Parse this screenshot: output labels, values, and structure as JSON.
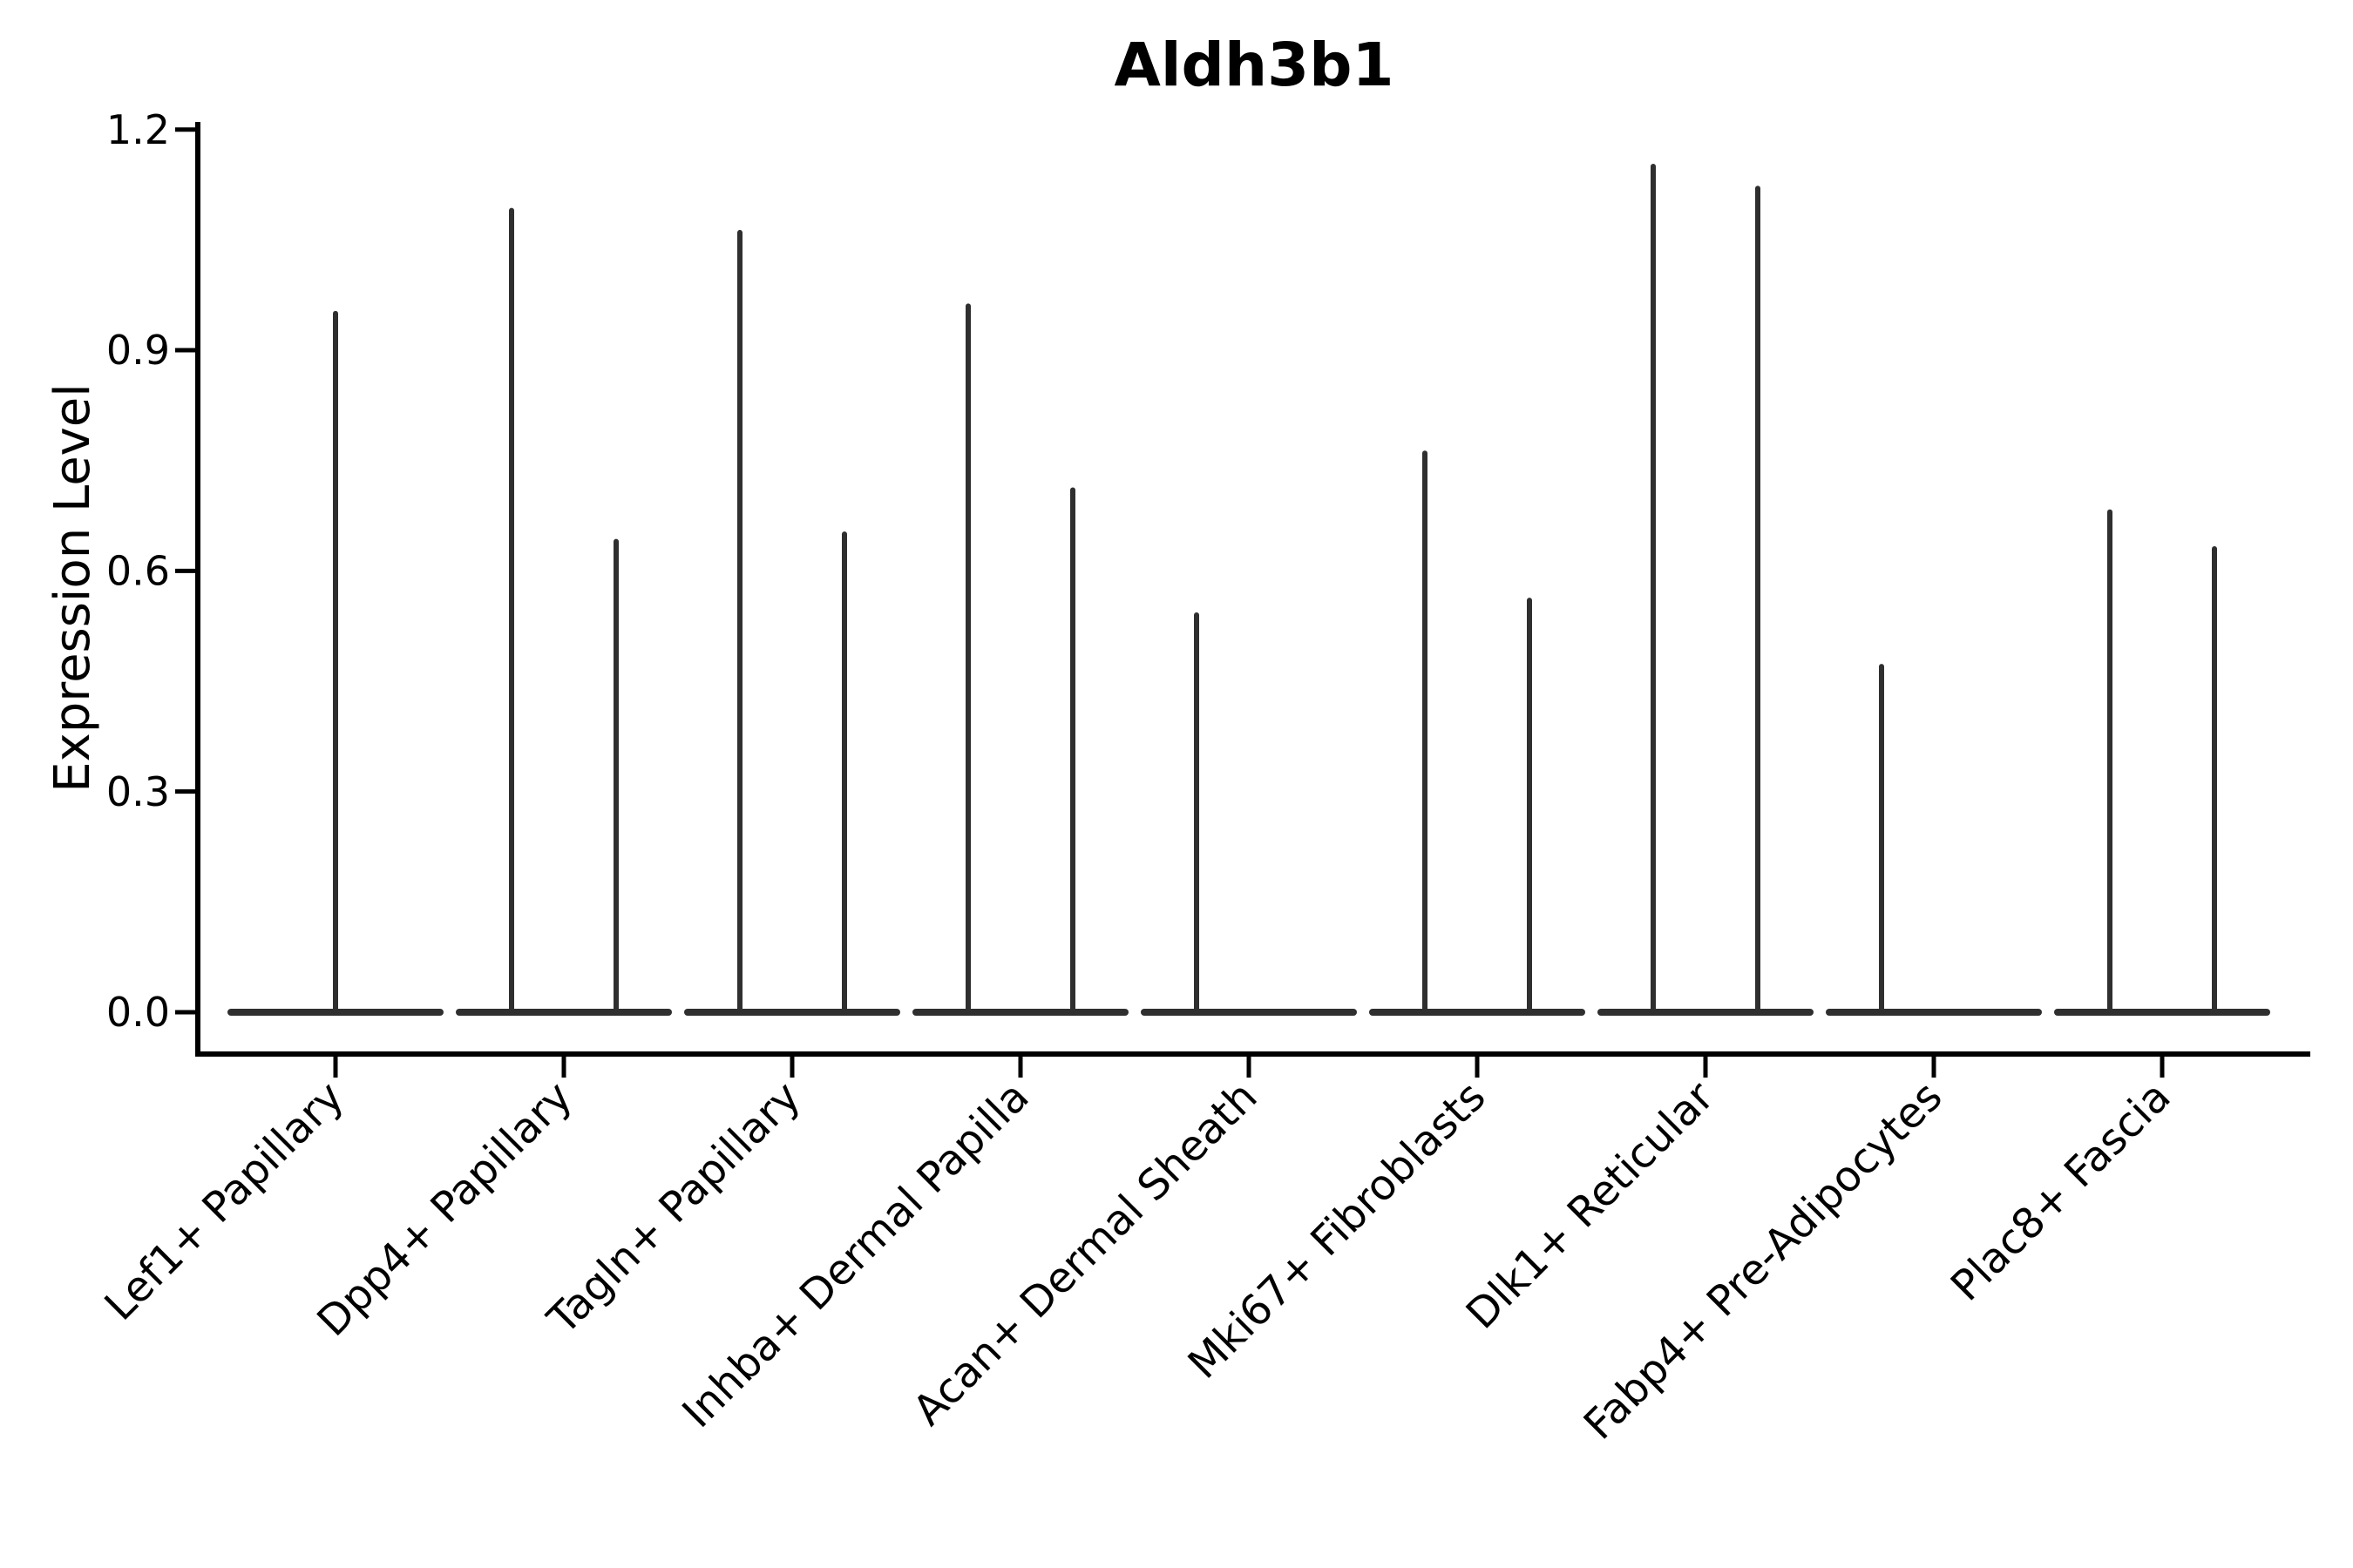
{
  "chart_data": {
    "type": "violin",
    "title": "Aldh3b1",
    "xlabel": "",
    "ylabel": "Expression Level",
    "ylim": [
      -0.06,
      1.26
    ],
    "yticks": [
      0.0,
      0.3,
      0.6,
      0.9,
      1.2
    ],
    "grid": false,
    "legend": "none",
    "style": "all violin density collapsed at 0 with thin vertical spikes reaching each violin's maximum expression",
    "categories": [
      "Lef1+ Papillary",
      "Dpp4+ Papillary",
      "Tagln+ Papillary",
      "Inhba+ Dermal Papilla",
      "Acan+ Dermal Sheath",
      "Mki67+ Fibroblasts",
      "Dlk1+ Reticular",
      "Fabp4+ Pre-Adipocytes",
      "Plac8+ Fascia"
    ],
    "groups": [
      {
        "category": "Lef1+ Papillary",
        "spike_max_values": [
          0.95
        ]
      },
      {
        "category": "Dpp4+ Papillary",
        "spike_max_values": [
          1.09,
          0.64
        ]
      },
      {
        "category": "Tagln+ Papillary",
        "spike_max_values": [
          1.06,
          0.65
        ]
      },
      {
        "category": "Inhba+ Dermal Papilla",
        "spike_max_values": [
          0.96,
          0.71
        ]
      },
      {
        "category": "Acan+ Dermal Sheath",
        "spike_max_values": [
          0.54,
          0.0
        ]
      },
      {
        "category": "Mki67+ Fibroblasts",
        "spike_max_values": [
          0.76,
          0.56
        ]
      },
      {
        "category": "Dlk1+ Reticular",
        "spike_max_values": [
          1.15,
          1.12
        ]
      },
      {
        "category": "Fabp4+ Pre-Adipocytes",
        "spike_max_values": [
          0.47,
          0.0
        ]
      },
      {
        "category": "Plac8+ Fascia",
        "spike_max_values": [
          0.68,
          0.63
        ]
      }
    ],
    "colors": {
      "violin_stroke": "#2f2f2f",
      "axis": "#000000",
      "background": "#ffffff"
    }
  }
}
